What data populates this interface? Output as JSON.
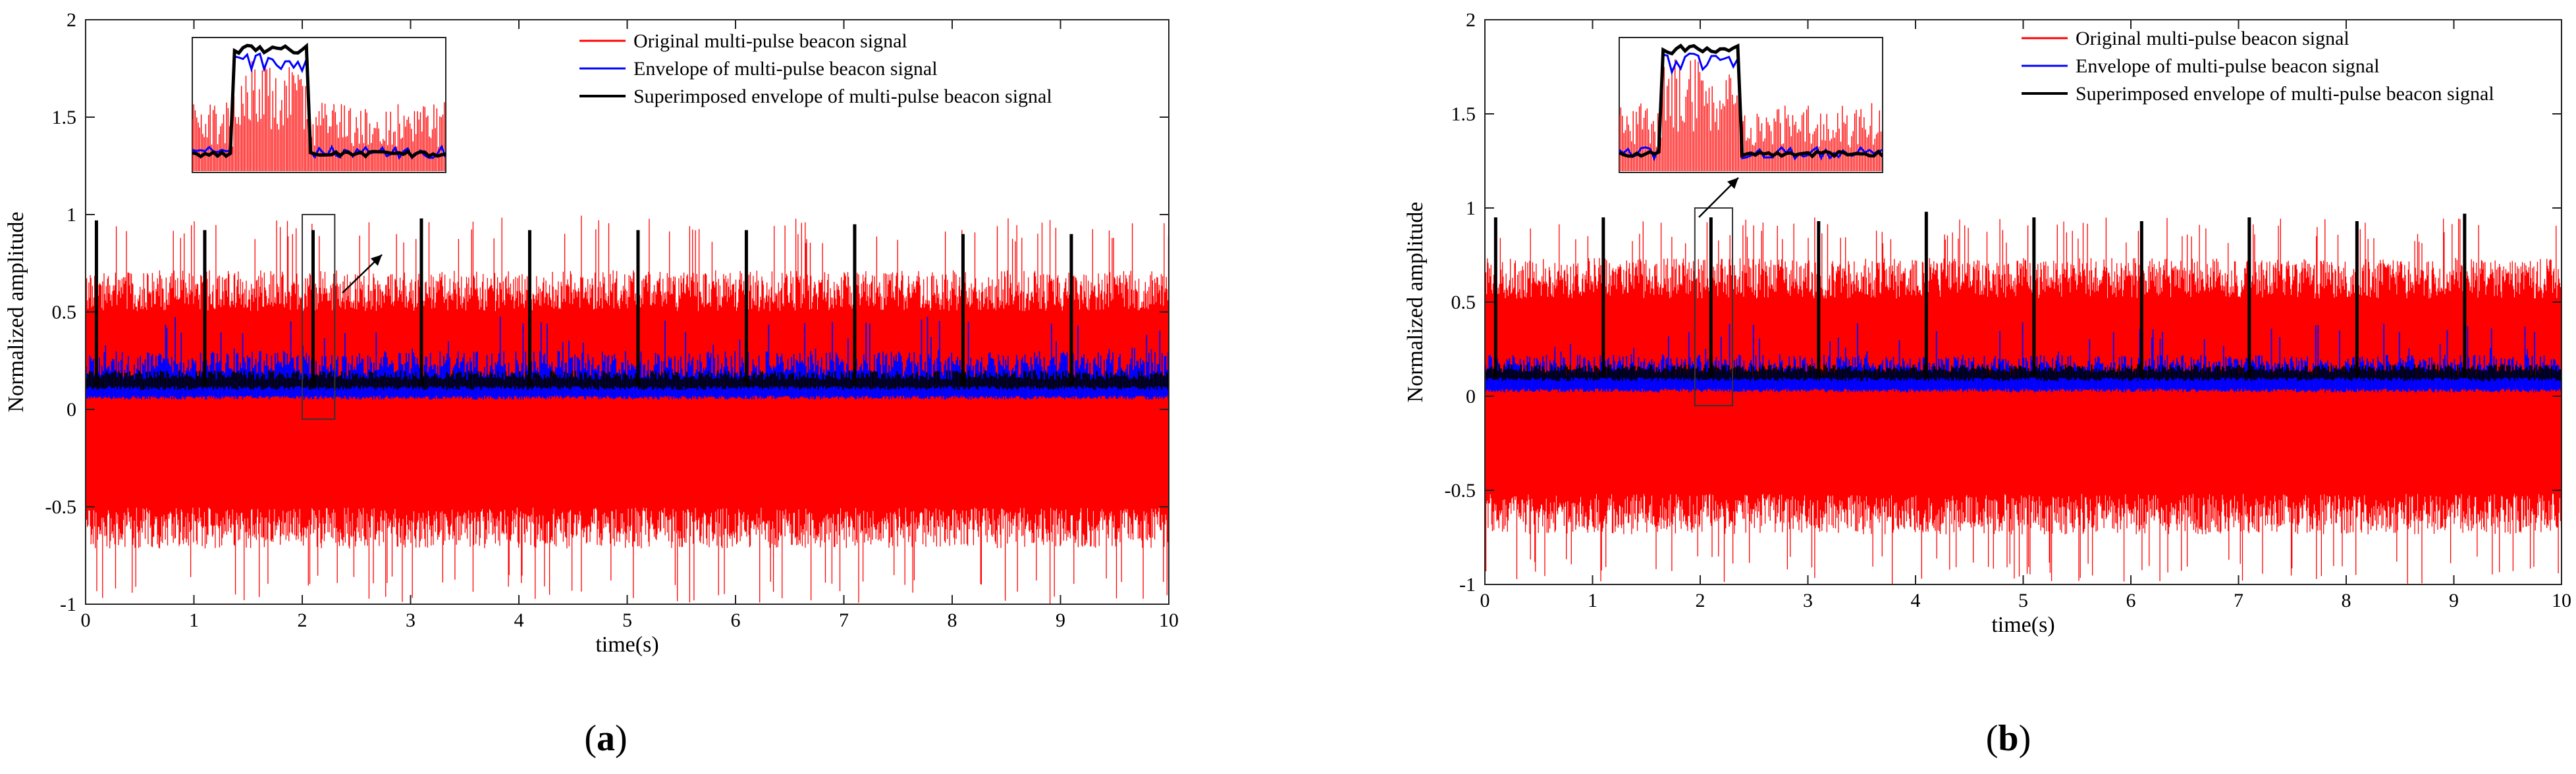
{
  "chart_data": [
    {
      "type": "line",
      "panel_label": "a",
      "xlabel": "time(s)",
      "ylabel": "Normalized amplitude",
      "xlim": [
        0,
        10
      ],
      "ylim": [
        -1,
        2
      ],
      "xticks": [
        0,
        1,
        2,
        3,
        4,
        5,
        6,
        7,
        8,
        9,
        10
      ],
      "yticks": [
        -1,
        -0.5,
        0,
        0.5,
        1,
        1.5,
        2
      ],
      "legend": [
        "Original multi-pulse beacon signal",
        "Envelope of multi-pulse beacon signal",
        "Superimposed envelope of multi-pulse beacon signal"
      ],
      "legend_position": "top-right",
      "series": [
        {
          "name": "Original multi-pulse beacon signal",
          "color": "#ff0000",
          "upper": 0.7,
          "lower": -0.7,
          "peak_upper": 1.0,
          "peak_lower": -1.0
        },
        {
          "name": "Envelope of multi-pulse beacon signal",
          "color": "#0000ff",
          "base": 0.05,
          "top": 0.3
        },
        {
          "name": "Superimposed envelope of multi-pulse beacon signal",
          "color": "#000000",
          "base": 0.12,
          "top": 0.2
        }
      ],
      "pulse_times": [
        0.1,
        1.1,
        2.1,
        3.1,
        4.1,
        5.1,
        6.1,
        7.1,
        8.1,
        9.1
      ],
      "pulse_peaks": [
        0.97,
        0.92,
        0.92,
        0.98,
        0.92,
        0.92,
        0.92,
        0.95,
        0.9,
        0.9
      ],
      "zoom_window": [
        2.0,
        2.3
      ]
    },
    {
      "type": "line",
      "panel_label": "b",
      "xlabel": "time(s)",
      "ylabel": "Normalized amplitude",
      "xlim": [
        0,
        10
      ],
      "ylim": [
        -1,
        2
      ],
      "xticks": [
        0,
        1,
        2,
        3,
        4,
        5,
        6,
        7,
        8,
        9,
        10
      ],
      "yticks": [
        -1,
        -0.5,
        0,
        0.5,
        1,
        1.5,
        2
      ],
      "legend": [
        "Original multi-pulse beacon signal",
        "Envelope of multi-pulse beacon signal",
        "Superimposed envelope of multi-pulse beacon signal"
      ],
      "legend_position": "top-right",
      "series": [
        {
          "name": "Original multi-pulse beacon signal",
          "color": "#ff0000",
          "upper": 0.72,
          "lower": -0.72,
          "peak_upper": 0.95,
          "peak_lower": -1.0
        },
        {
          "name": "Envelope of multi-pulse beacon signal",
          "color": "#0000ff",
          "base": 0.02,
          "top": 0.22
        },
        {
          "name": "Superimposed envelope of multi-pulse beacon signal",
          "color": "#000000",
          "base": 0.1,
          "top": 0.17
        }
      ],
      "pulse_times": [
        0.1,
        1.1,
        2.1,
        3.1,
        4.1,
        5.1,
        6.1,
        7.1,
        8.1,
        9.1
      ],
      "pulse_peaks": [
        0.95,
        0.95,
        0.95,
        0.93,
        0.98,
        0.95,
        0.93,
        0.95,
        0.93,
        0.97
      ],
      "zoom_window": [
        1.95,
        2.3
      ]
    }
  ]
}
